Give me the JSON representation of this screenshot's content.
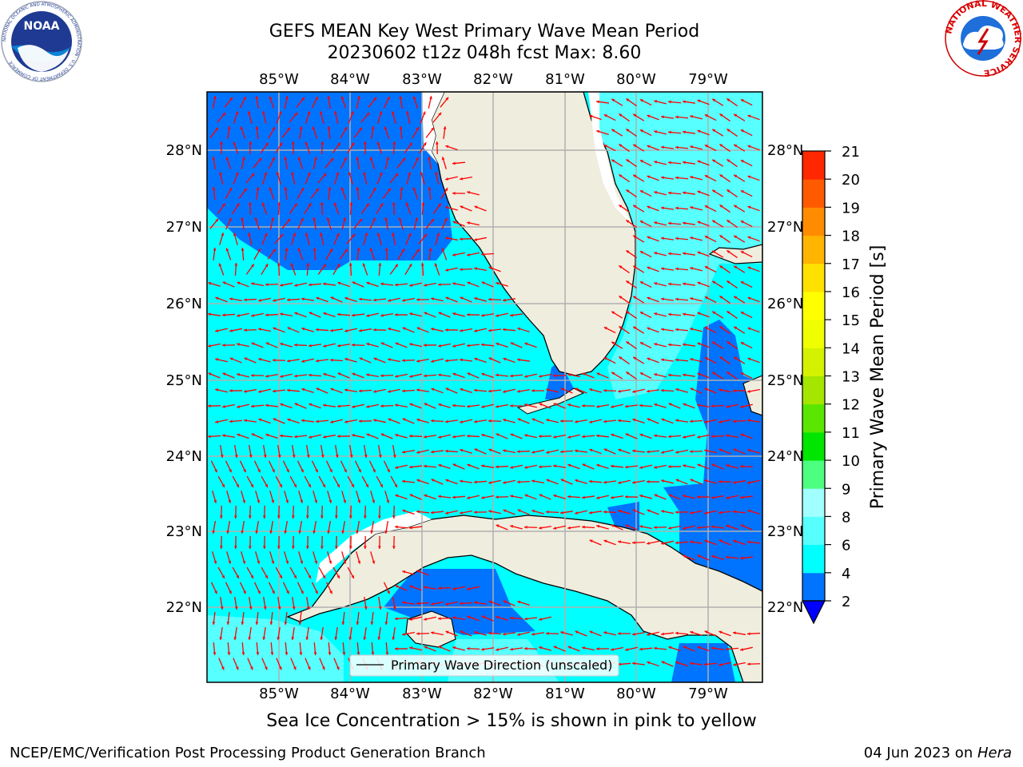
{
  "title": {
    "line1": "GEFS MEAN Key West Primary Wave Mean Period",
    "line2": "20230602 t12z 048h fcst   Max: 8.60"
  },
  "logos": {
    "left": {
      "icon": "noaa-logo",
      "text": "NOAA",
      "ring_text": "NATIONAL OCEANIC AND ATMOSPHERIC ADMINISTRATION · U.S. DEPARTMENT OF COMMERCE"
    },
    "right": {
      "icon": "nws-logo",
      "ring_text": "NATIONAL WEATHER SERVICE"
    }
  },
  "map": {
    "lon_labels": [
      "85°W",
      "84°W",
      "83°W",
      "82°W",
      "81°W",
      "80°W",
      "79°W"
    ],
    "lat_labels": [
      "28°N",
      "27°N",
      "26°N",
      "25°N",
      "24°N",
      "23°N",
      "22°N"
    ],
    "legend_label": "Primary Wave Direction (unscaled)",
    "land_color": "#efedde",
    "arrow_color": "#ff0000",
    "grid": true
  },
  "colorbar": {
    "label": "Primary Wave Mean Period [s]",
    "ticks": [
      "2",
      "4",
      "6",
      "8",
      "9",
      "10",
      "11",
      "12",
      "13",
      "14",
      "15",
      "16",
      "17",
      "18",
      "19",
      "20",
      "21"
    ],
    "colors": [
      "#0073ff",
      "#00ffff",
      "#57ffff",
      "#a1ffff",
      "#4dff80",
      "#00e600",
      "#5ae600",
      "#a4e600",
      "#d4f200",
      "#f0ff00",
      "#ffff00",
      "#ffe100",
      "#ffb400",
      "#ff8c00",
      "#ff5a00",
      "#ff2800"
    ],
    "under_color": "#0000ff"
  },
  "chart_data": {
    "type": "heatmap",
    "title": "GEFS MEAN Key West Primary Wave Mean Period",
    "subtitle": "20230602 t12z 048h fcst   Max: 8.60",
    "xlim": [
      -86.0,
      -78.25
    ],
    "ylim": [
      21.05,
      28.75
    ],
    "levels": [
      2,
      4,
      6,
      8,
      9,
      10,
      11,
      12,
      13,
      14,
      15,
      16,
      17,
      18,
      19,
      20,
      21
    ],
    "max": 8.6,
    "colorbar_label": "Primary Wave Mean Period [s]"
  },
  "note": "Sea Ice Concentration > 15% is shown in pink to yellow",
  "footer": {
    "left": "NCEP/EMC/Verification Post Processing Product Generation Branch",
    "right_prefix": "04 Jun 2023 on ",
    "right_machine": "Hera"
  }
}
